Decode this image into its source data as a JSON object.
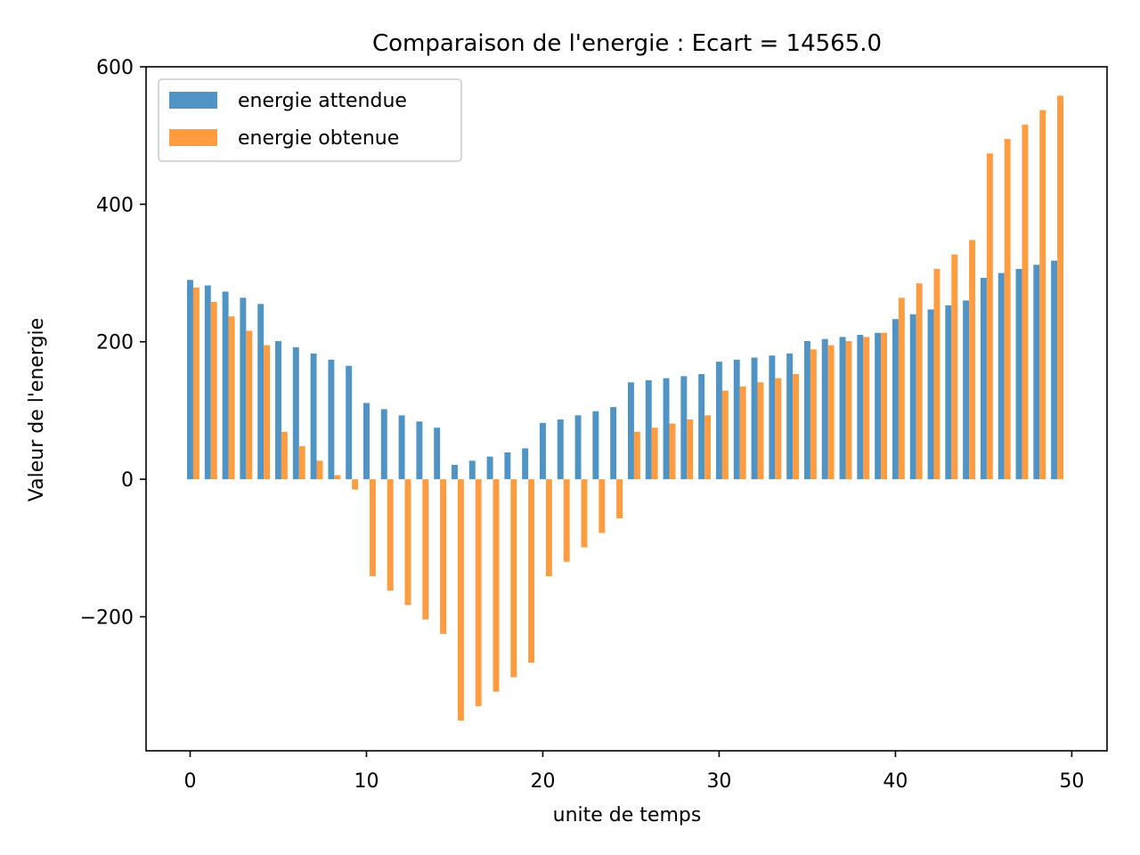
{
  "chart_data": {
    "type": "bar",
    "title": "Comparaison de l'energie : Ecart =  14565.0",
    "xlabel": "unite de temps",
    "ylabel": "Valeur de l'energie",
    "xlim": [
      -2.5,
      52
    ],
    "ylim": [
      -395,
      600
    ],
    "xticks": [
      0,
      10,
      20,
      30,
      40,
      50
    ],
    "yticks": [
      -200,
      0,
      200,
      400,
      600
    ],
    "xtick_labels": [
      "0",
      "10",
      "20",
      "30",
      "40",
      "50"
    ],
    "ytick_labels": [
      "−200",
      "0",
      "200",
      "400",
      "600"
    ],
    "bar_width": 0.35,
    "legend": {
      "position": "upper-left"
    },
    "series": [
      {
        "name": "energie attendue",
        "color": "#4f94c4",
        "offset": 0,
        "x": [
          0,
          1,
          2,
          3,
          4,
          5,
          6,
          7,
          8,
          9,
          10,
          11,
          12,
          13,
          14,
          15,
          16,
          17,
          18,
          19,
          20,
          21,
          22,
          23,
          24,
          25,
          26,
          27,
          28,
          29,
          30,
          31,
          32,
          33,
          34,
          35,
          36,
          37,
          38,
          39,
          40,
          41,
          42,
          43,
          44,
          45,
          46,
          47,
          48,
          49
        ],
        "values": [
          290,
          282,
          273,
          264,
          255,
          201,
          192,
          183,
          174,
          165,
          111,
          102,
          93,
          84,
          75,
          21,
          27,
          33,
          39,
          45,
          82,
          87,
          93,
          99,
          105,
          141,
          144,
          147,
          150,
          153,
          171,
          174,
          177,
          180,
          183,
          201,
          204,
          207,
          210,
          213,
          233,
          240,
          247,
          253,
          260,
          293,
          300,
          306,
          312,
          318
        ]
      },
      {
        "name": "energie obtenue",
        "color": "#ff9c40",
        "offset": 0.35,
        "x": [
          0,
          1,
          2,
          3,
          4,
          5,
          6,
          7,
          8,
          9,
          10,
          11,
          12,
          13,
          14,
          15,
          16,
          17,
          18,
          19,
          20,
          21,
          22,
          23,
          24,
          25,
          26,
          27,
          28,
          29,
          30,
          31,
          32,
          33,
          34,
          35,
          36,
          37,
          38,
          39,
          40,
          41,
          42,
          43,
          44,
          45,
          46,
          47,
          48,
          49
        ],
        "values": [
          279,
          258,
          237,
          216,
          195,
          69,
          48,
          27,
          6,
          -15,
          -141,
          -162,
          -183,
          -204,
          -225,
          -351,
          -330,
          -309,
          -288,
          -267,
          -141,
          -120,
          -99,
          -78,
          -57,
          69,
          75,
          81,
          87,
          93,
          129,
          135,
          141,
          147,
          153,
          189,
          195,
          201,
          207,
          213,
          264,
          285,
          306,
          327,
          348,
          474,
          495,
          516,
          537,
          558
        ]
      }
    ]
  }
}
